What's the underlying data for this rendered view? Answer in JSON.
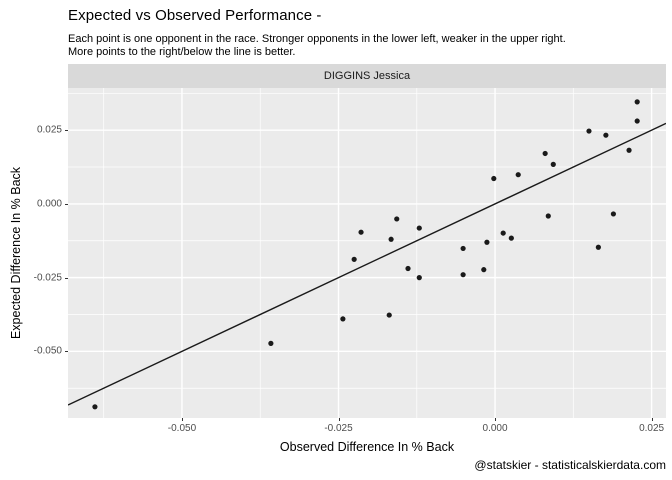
{
  "header": {
    "title": "Expected vs Observed Performance -",
    "subtitle_line1": "Each point is one opponent in the race. Stronger opponents in the lower left, weaker in the upper right.",
    "subtitle_line2": "More points to the right/below the line is better."
  },
  "facet": {
    "label": "DIGGINS Jessica"
  },
  "footer": {
    "caption": "@statskier - statisticalskierdata.com"
  },
  "colors": {
    "panel_bg": "#EBEBEB",
    "strip_bg": "#D9D9D9",
    "grid": "#FFFFFF",
    "point": "#1A1A1A",
    "line": "#1A1A1A",
    "tick_text": "#4D4D4D",
    "tick_mark": "#333333"
  },
  "chart_data": {
    "type": "scatter",
    "title": "Expected vs Observed Performance -",
    "xlabel": "Observed Difference In % Back",
    "ylabel": "Expected Difference In % Back",
    "facet_label": "DIGGINS Jessica",
    "xlim": [
      -0.0682,
      0.0273
    ],
    "ylim": [
      -0.0726,
      0.0393
    ],
    "x_major_ticks": [
      -0.05,
      -0.025,
      0.0,
      0.025
    ],
    "x_tick_labels": [
      "-0.050",
      "-0.025",
      "0.000",
      "0.025"
    ],
    "x_minor_ticks": [
      -0.0625,
      -0.0375,
      -0.0125,
      0.0125
    ],
    "y_major_ticks": [
      0.025,
      0.0,
      -0.025,
      -0.05
    ],
    "y_tick_labels": [
      "0.025",
      "0.000",
      "-0.025",
      "-0.050"
    ],
    "y_minor_ticks": [
      0.0375,
      0.0125,
      -0.0125,
      -0.0375,
      -0.0625
    ],
    "grid": true,
    "reference_line": {
      "type": "identity",
      "slope": 1,
      "intercept": 0
    },
    "points": [
      [
        -0.0639,
        -0.0688
      ],
      [
        -0.0358,
        -0.0473
      ],
      [
        -0.0243,
        -0.039
      ],
      [
        -0.0169,
        -0.0377
      ],
      [
        -0.0225,
        -0.0188
      ],
      [
        -0.0214,
        -0.0096
      ],
      [
        -0.0166,
        -0.012
      ],
      [
        -0.0157,
        -0.0051
      ],
      [
        -0.0139,
        -0.0219
      ],
      [
        -0.0121,
        -0.025
      ],
      [
        -0.0121,
        -0.0082
      ],
      [
        -0.0051,
        -0.0151
      ],
      [
        -0.0051,
        -0.024
      ],
      [
        -0.0018,
        -0.0223
      ],
      [
        -0.0013,
        -0.013
      ],
      [
        -0.0002,
        0.0086
      ],
      [
        0.0013,
        -0.0099
      ],
      [
        0.0026,
        -0.0116
      ],
      [
        0.0037,
        0.0099
      ],
      [
        0.008,
        0.0171
      ],
      [
        0.0085,
        -0.0041
      ],
      [
        0.0093,
        0.0134
      ],
      [
        0.015,
        0.0247
      ],
      [
        0.0165,
        -0.0147
      ],
      [
        0.0177,
        0.0233
      ],
      [
        0.0189,
        -0.0034
      ],
      [
        0.0214,
        0.0182
      ],
      [
        0.0227,
        0.0346
      ],
      [
        0.0227,
        0.0281
      ]
    ]
  }
}
